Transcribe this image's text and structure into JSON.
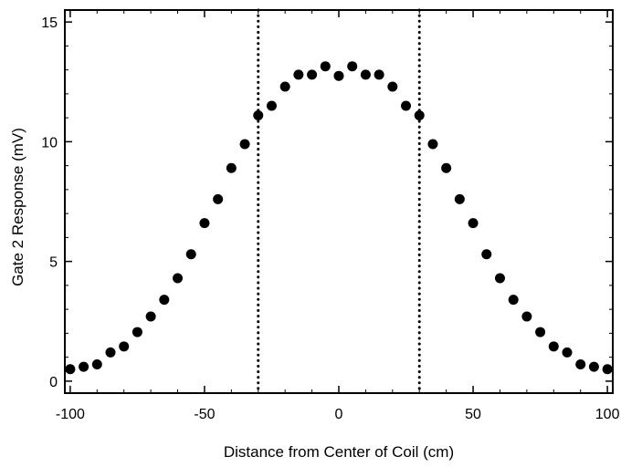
{
  "chart_data": {
    "type": "scatter",
    "title": "",
    "xlabel": "Distance from Center of Coil (cm)",
    "ylabel": "Gate 2 Response (mV)",
    "xlim": [
      -102,
      102
    ],
    "ylim": [
      -0.5,
      15.5
    ],
    "xticks": [
      -100,
      -50,
      0,
      50,
      100
    ],
    "xtick_labels": [
      "-100",
      "-50",
      "0",
      "50",
      "100"
    ],
    "yticks": [
      0,
      5,
      10,
      15
    ],
    "ytick_labels": [
      "0",
      "5",
      "10",
      "15"
    ],
    "grid": false,
    "legend": "none",
    "marker_color": "#000000",
    "vertical_reference_lines": [
      {
        "x": -30,
        "style": "dotted"
      },
      {
        "x": 30,
        "style": "dotted"
      }
    ],
    "series": [
      {
        "x": [
          -100,
          -95,
          -90,
          -85,
          -80,
          -75,
          -70,
          -65,
          -60,
          -55,
          -50,
          -45,
          -40,
          -35,
          -30,
          -25,
          -20,
          -15,
          -10,
          -5,
          0,
          5,
          10,
          15,
          20,
          25,
          30,
          35,
          40,
          45,
          50,
          55,
          60,
          65,
          70,
          75,
          80,
          85,
          90,
          95,
          100
        ],
        "y": [
          0.5,
          0.6,
          0.7,
          1.2,
          1.45,
          2.05,
          2.7,
          3.4,
          4.3,
          5.3,
          6.6,
          7.6,
          8.9,
          9.9,
          11.1,
          11.5,
          12.3,
          12.8,
          12.8,
          13.15,
          12.75,
          13.15,
          12.8,
          12.8,
          12.3,
          11.5,
          11.1,
          9.9,
          8.9,
          7.6,
          6.6,
          5.3,
          4.3,
          3.4,
          2.7,
          2.05,
          1.45,
          1.2,
          0.7,
          0.6,
          0.5
        ]
      }
    ]
  }
}
